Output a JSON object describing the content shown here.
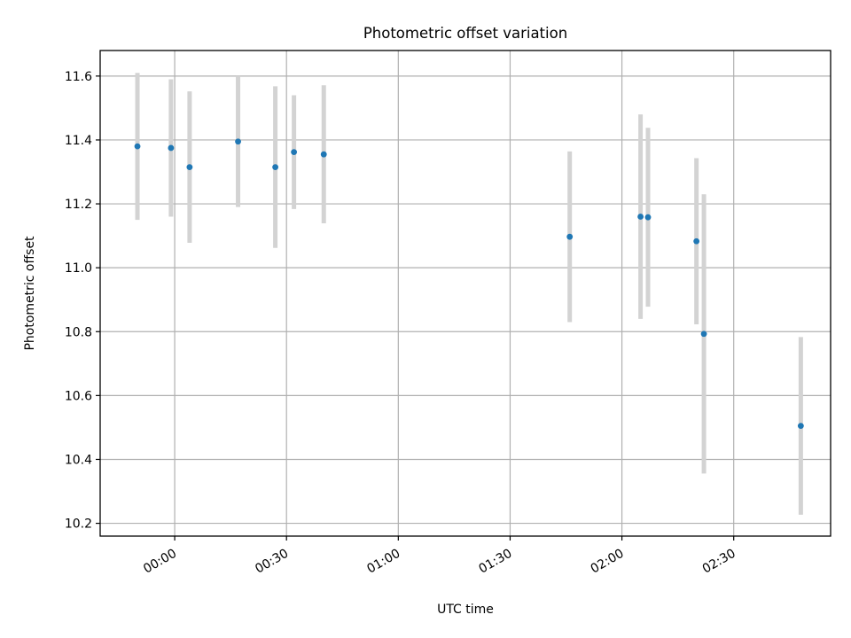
{
  "chart_data": {
    "type": "scatter",
    "title": "Photometric offset variation",
    "xlabel": "UTC time",
    "ylabel": "Photometric offset",
    "x_unit": "time (HH:MM, UTC)",
    "xlim": [
      "23:40",
      "02:56"
    ],
    "ylim": [
      10.16,
      11.68
    ],
    "x_ticks": [
      "00:00",
      "00:30",
      "01:00",
      "01:30",
      "02:00",
      "02:30"
    ],
    "y_ticks": [
      "10.2",
      "10.4",
      "10.6",
      "10.8",
      "11.0",
      "11.2",
      "11.4",
      "11.6"
    ],
    "grid": true,
    "legend": "none",
    "marker_color": "#1f77b4",
    "errorbar_color": "#d3d3d3",
    "points": [
      {
        "time": "23:50",
        "y": 11.38,
        "yerr": 0.23
      },
      {
        "time": "23:59",
        "y": 11.375,
        "yerr": 0.215
      },
      {
        "time": "00:04",
        "y": 11.315,
        "yerr": 0.237
      },
      {
        "time": "00:17",
        "y": 11.395,
        "yerr": 0.205
      },
      {
        "time": "00:27",
        "y": 11.315,
        "yerr": 0.253
      },
      {
        "time": "00:32",
        "y": 11.362,
        "yerr": 0.178
      },
      {
        "time": "00:40",
        "y": 11.355,
        "yerr": 0.216
      },
      {
        "time": "01:46",
        "y": 11.097,
        "yerr": 0.267
      },
      {
        "time": "02:05",
        "y": 11.16,
        "yerr": 0.32
      },
      {
        "time": "02:07",
        "y": 11.158,
        "yerr": 0.28
      },
      {
        "time": "02:20",
        "y": 11.083,
        "yerr": 0.26
      },
      {
        "time": "02:22",
        "y": 10.793,
        "yerr": 0.437
      },
      {
        "time": "02:48",
        "y": 10.505,
        "yerr": 0.278
      }
    ]
  }
}
